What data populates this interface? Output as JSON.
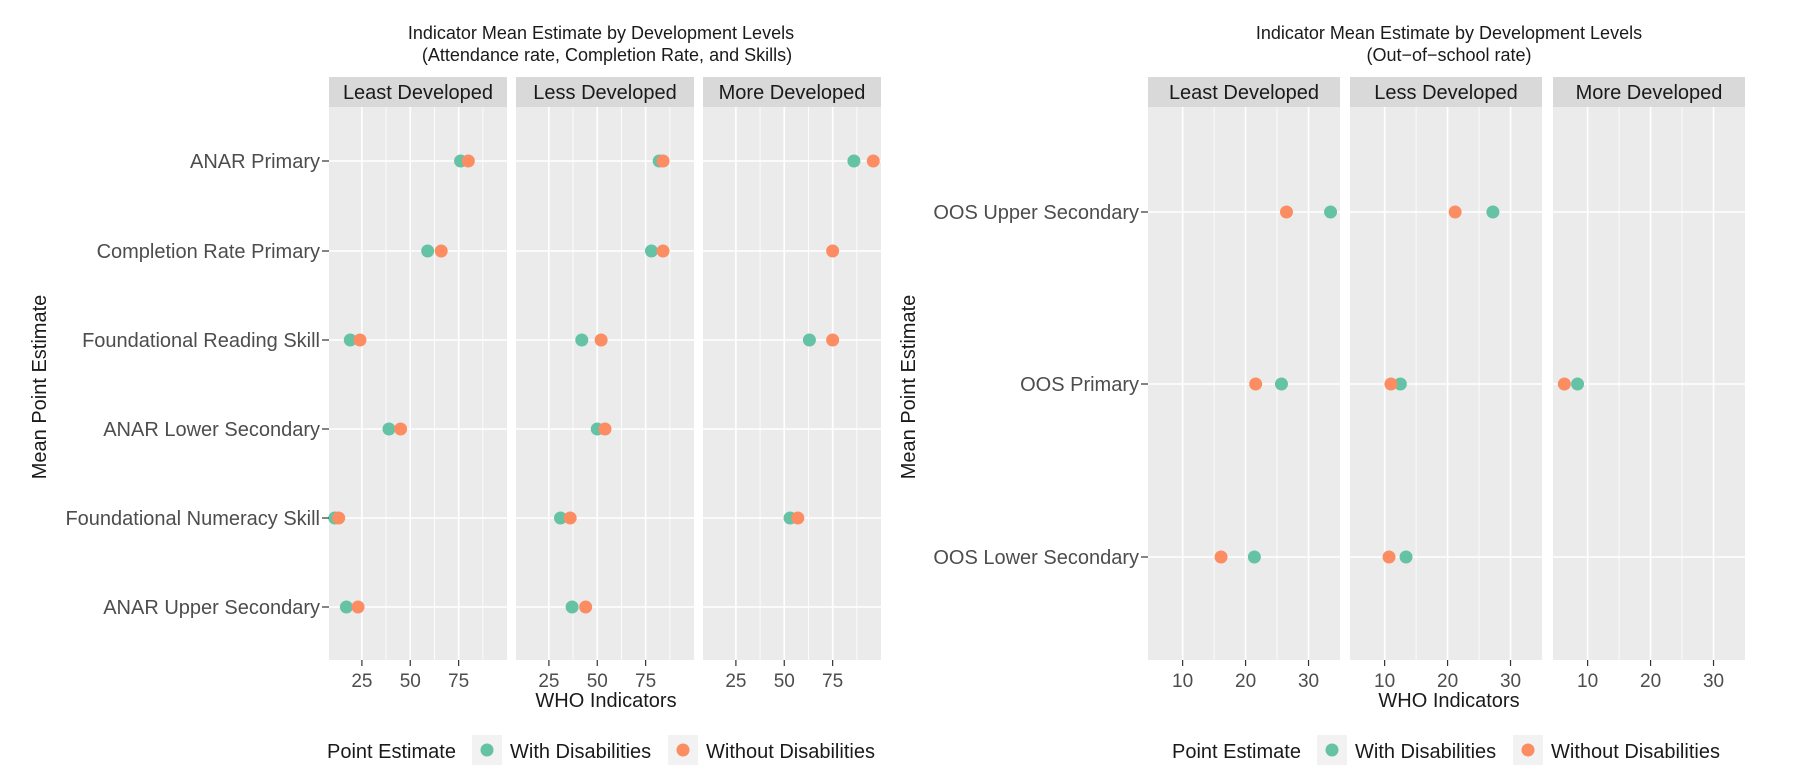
{
  "palette": {
    "with": "#66c2a5",
    "without": "#fc8d62",
    "panel_bg": "#ebebeb",
    "strip_bg": "#d9d9d9",
    "grid": "#ffffff"
  },
  "chart_data": [
    {
      "type": "scatter",
      "title": "Indicator Mean Estimate by Development Levels",
      "subtitle": "(Attendance rate, Completion Rate, and Skills)",
      "xlabel": "WHO Indicators",
      "ylabel": "Mean Point Estimate",
      "xlim": [
        8,
        100
      ],
      "xticks": [
        25,
        50,
        75
      ],
      "minor_xticks": [
        37.5,
        62.5,
        87.5
      ],
      "facets": [
        "Least Developed",
        "Less Developed",
        "More Developed"
      ],
      "categories": [
        "ANAR Primary",
        "Completion Rate Primary",
        "Foundational Reading Skill",
        "ANAR Lower Secondary",
        "Foundational Numeracy Skill",
        "ANAR Upper Secondary"
      ],
      "legend": {
        "title": "Point Estimate",
        "position": "bottom",
        "entries": [
          "With Disabilities",
          "Without Disabilities"
        ]
      },
      "series": [
        {
          "name": "With Disabilities",
          "color_key": "with",
          "values": [
            [
              76,
              82,
              86
            ],
            [
              59,
              78,
              null
            ],
            [
              19,
              42,
              63
            ],
            [
              39,
              50,
              null
            ],
            [
              11,
              31,
              53
            ],
            [
              17,
              37,
              null
            ]
          ]
        },
        {
          "name": "Without Disabilities",
          "color_key": "without",
          "values": [
            [
              80,
              84,
              96
            ],
            [
              66,
              84,
              75
            ],
            [
              24,
              52,
              75
            ],
            [
              45,
              54,
              null
            ],
            [
              13,
              36,
              57
            ],
            [
              23,
              44,
              null
            ]
          ]
        }
      ]
    },
    {
      "type": "scatter",
      "title": "Indicator Mean Estimate by Development Levels",
      "subtitle": "(Out−of−school rate)",
      "xlabel": "WHO Indicators",
      "ylabel": "Mean Point Estimate",
      "xlim": [
        4.5,
        35
      ],
      "xticks": [
        10,
        20,
        30
      ],
      "minor_xticks": [
        15,
        25
      ],
      "facets": [
        "Least Developed",
        "Less Developed",
        "More Developed"
      ],
      "categories": [
        "OOS Upper Secondary",
        "OOS Primary",
        "OOS Lower Secondary"
      ],
      "legend": {
        "title": "Point Estimate",
        "position": "bottom",
        "entries": [
          "With Disabilities",
          "Without Disabilities"
        ]
      },
      "series": [
        {
          "name": "With Disabilities",
          "color_key": "with",
          "values": [
            [
              33.5,
              27.2,
              null
            ],
            [
              25.7,
              12.5,
              8.4
            ],
            [
              21.4,
              13.4,
              null
            ]
          ]
        },
        {
          "name": "Without Disabilities",
          "color_key": "without",
          "values": [
            [
              26.5,
              21.2,
              null
            ],
            [
              21.6,
              11.0,
              6.3
            ],
            [
              16.1,
              10.7,
              null
            ]
          ]
        }
      ]
    }
  ]
}
